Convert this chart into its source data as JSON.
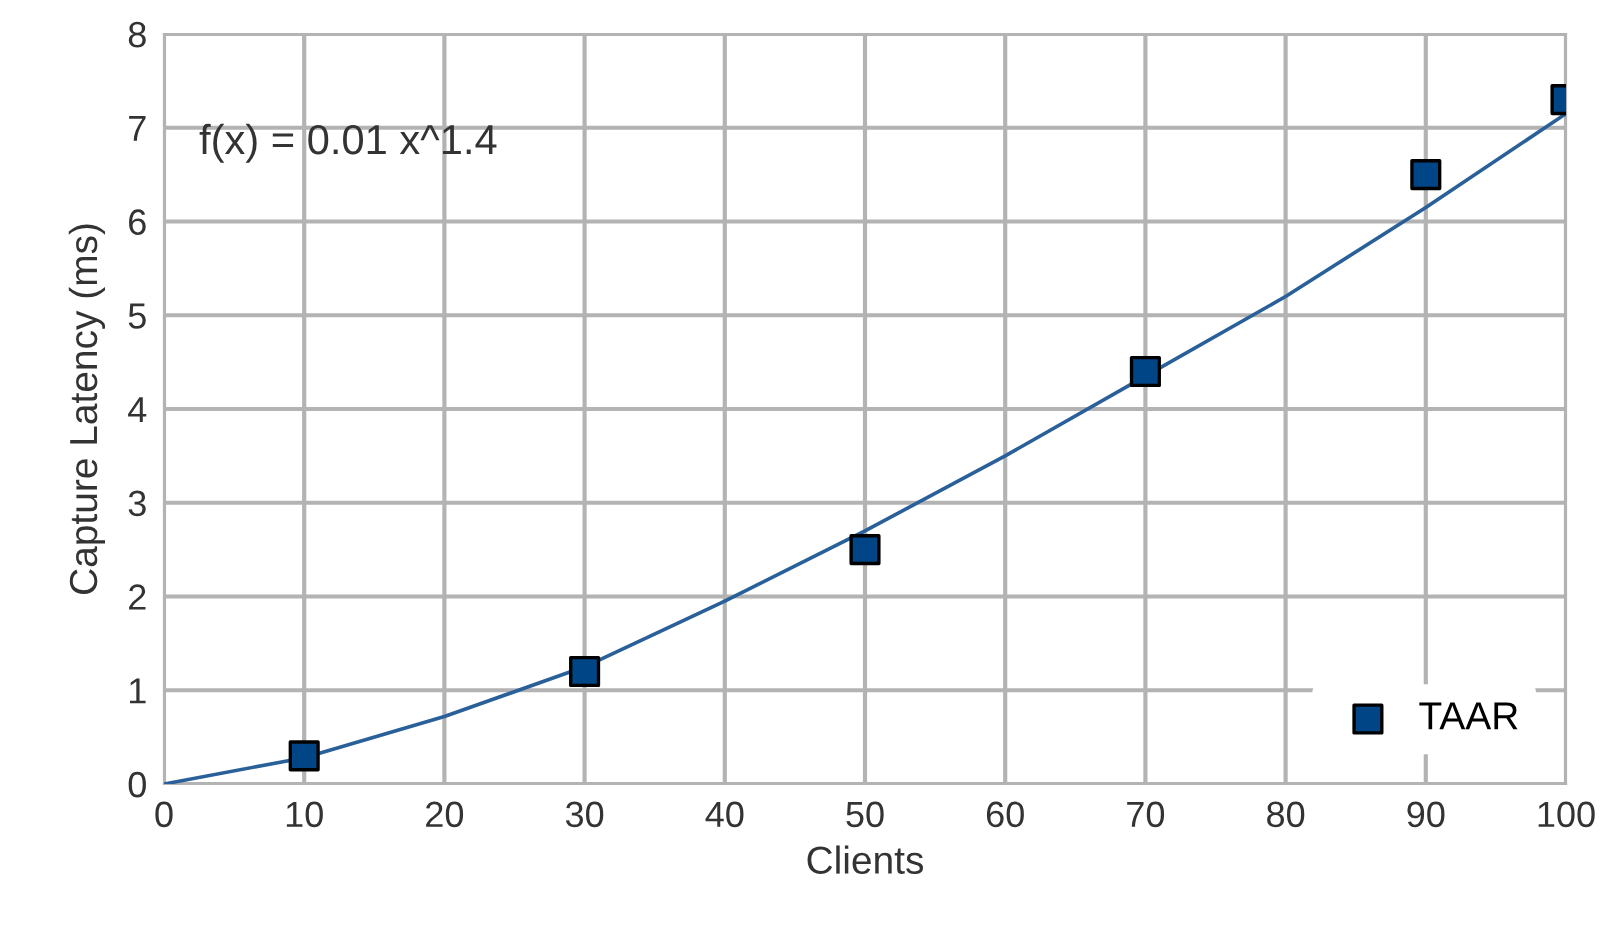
{
  "chart_data": {
    "type": "scatter",
    "xlabel": "Clients",
    "ylabel": "Capture Latency (ms)",
    "x": [
      10,
      30,
      50,
      70,
      90,
      100
    ],
    "series": [
      {
        "name": "TAAR",
        "color": "#004586",
        "values": [
          0.3,
          1.2,
          2.5,
          4.4,
          6.5,
          7.3
        ],
        "marker": "square"
      },
      {
        "type": "line",
        "color": "#2a6099",
        "x": [
          0,
          10,
          20,
          30,
          40,
          50,
          60,
          70,
          80,
          90,
          100
        ],
        "values": [
          0,
          0.28,
          0.72,
          1.25,
          1.95,
          2.7,
          3.5,
          4.35,
          5.2,
          6.15,
          7.15
        ],
        "marker": "none"
      }
    ],
    "annotations": [
      "f(x) = 0.01 x^1.4"
    ],
    "xlim": [
      0,
      100
    ],
    "xticks": [
      0,
      10,
      20,
      30,
      40,
      50,
      60,
      70,
      80,
      90,
      100
    ],
    "ylim": [
      0,
      8
    ],
    "yticks": [
      0,
      1,
      2,
      3,
      4,
      5,
      6,
      7,
      8
    ],
    "grid": true,
    "legend": "bottom right"
  }
}
